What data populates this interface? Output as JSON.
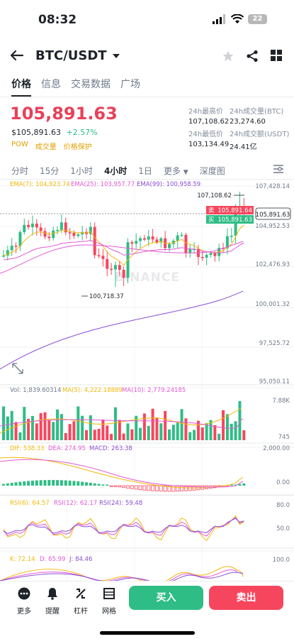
{
  "status": {
    "time": "08:32",
    "battery": "22"
  },
  "header": {
    "pair": "BTC/USDT"
  },
  "tabs": [
    "价格",
    "信息",
    "交易数据",
    "广场"
  ],
  "price": {
    "last": "105,891.63",
    "usd": "$105,891.63",
    "change": "+2.57%",
    "tags": [
      "POW",
      "成交量",
      "价格保护"
    ]
  },
  "stats": {
    "high_label": "24h最高价",
    "high": "107,108.62",
    "vol_btc_label": "24h成交量(BTC)",
    "vol_btc": "23,274.60",
    "low_label": "24h最低价",
    "low": "103,134.49",
    "vol_usdt_label": "24h成交额(USDT)",
    "vol_usdt": "24.41亿"
  },
  "intervals": [
    "分时",
    "15分",
    "1小时",
    "4小时",
    "1日",
    "更多",
    "深度图"
  ],
  "chart": {
    "ema_legend": {
      "ema7": "EMA(7): 104,923.74",
      "ema25": "EMA(25): 103,957.77",
      "ema99": "EMA(99): 100,958.59"
    },
    "price_axis": [
      "107,428.14",
      "104,952.53",
      "102,476.93",
      "100,001.32",
      "97,525.72",
      "95,050.11"
    ],
    "high_marker": "107,108.62",
    "low_marker": "100,718.37",
    "current_price_tag": "105,891.63",
    "ask_label": "卖",
    "ask": "105,891.64",
    "bid_label": "买",
    "bid": "105,891.63",
    "watermark": "BINANCE",
    "vol_legend": {
      "vol": "Vol: 1,839.60314",
      "ma5": "MA(5): 4,222.18889",
      "ma10": "MA(10): 2,779.24185"
    },
    "vol_axis": [
      "7.88K",
      "745"
    ],
    "macd_legend": {
      "dif": "DIF: 538.33",
      "dea": "DEA: 274.95",
      "macd": "MACD: 263.38"
    },
    "macd_axis": [
      "2,000.00",
      "0.00"
    ],
    "rsi_legend": {
      "rsi6": "RSI(6): 64.57",
      "rsi12": "RSI(12): 62.17",
      "rsi24": "RSI(24): 59.48"
    },
    "rsi_axis": [
      "80.0",
      "50.0"
    ],
    "kdj_legend": {
      "k": "K: 72.14",
      "d": "D: 65.99",
      "j": "J: 84.46"
    },
    "kdj_axis": [
      "100.0"
    ]
  },
  "bottom": {
    "more": "更多",
    "alert": "提醒",
    "leverage": "杠杆",
    "grid": "网格",
    "buy": "买入",
    "sell": "卖出"
  },
  "colors": {
    "up": "#2ebd85",
    "down": "#f6465d",
    "ema7": "#f0b90b",
    "ema25": "#e35ad2",
    "ema99": "#8a4fd6"
  }
}
